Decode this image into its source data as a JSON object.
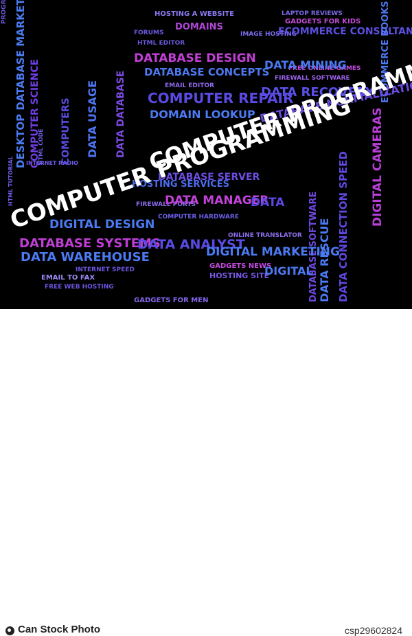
{
  "word_cloud": {
    "headline_1": "COMPUTER PROGRAMMING",
    "headline_2": "COMPUTER PROGRAMMING",
    "words": {
      "database_design": "DATABASE DESIGN",
      "database_concepts": "DATABASE CONCEPTS",
      "data_usage": "DATA USAGE",
      "data_mining": "DATA MINING",
      "data_recovery": "DATA RECOVERY",
      "computer_repair": "COMPUTER REPAIR",
      "domain_lookup": "DOMAIN LOOKUP",
      "database_normalization": "DATABASE NORMALIZATION",
      "database_server": "DATABASE SERVER",
      "data_manager": "DATA MANAGER",
      "data": "DATA",
      "digital_design": "DIGITAL DESIGN",
      "database_systems": "DATABASE SYSTEMS",
      "data_warehouse": "DATA WAREHOUSE",
      "data_analyst": "DATA ANALYST",
      "digital_marketing": "DIGITAL MARKETING",
      "data_database": "DATA DATABASE",
      "digital": "DIGITAL",
      "data_rescue": "DATA RESCUE",
      "data_connection_speed": "DATA CONNECTION SPEED",
      "digital_cameras": "DIGITAL CAMERAS",
      "database_software": "DATABASE SOFTWARE",
      "hosting_a_website": "HOSTING A WEBSITE",
      "domains": "DOMAINS",
      "ecommerce_consultant": "ECOMMERCE CONSULTANT",
      "ecommerce_books": "ECOMMERCE BOOKS",
      "computer_science": "COMPUTER SCIENCE",
      "desktop_database_marketing": "DESKTOP DATABASE MARKETING",
      "hosting_services": "HOSTING SERVICES",
      "firewall_ports": "FIREWALL PORTS",
      "email_to_fax": "EMAIL TO FAX",
      "internet_speed": "INTERNET SPEED",
      "gadgets_for_men": "GADGETS FOR MEN",
      "online_games": "FREE ONLINE GAMES",
      "firewall_software": "FIREWALL SOFTWARE",
      "email_editor": "EMAIL EDITOR",
      "laptop_reviews": "LAPTOP REVIEWS",
      "programming": "PROGRAMMING",
      "forums": "FORUMS",
      "html_editor": "HTML EDITOR",
      "image_hosting": "IMAGE HOSTING",
      "gadgets_for_kids": "GADGETS FOR KIDS",
      "computer_s": "COMPUTERS",
      "gadgets_news": "GADGETS NEWS",
      "online_translator": "ONLINE TRANSLATOR",
      "hosting_site": "HOSTING SITE",
      "computer_hardware": "COMPUTER HARDWARE",
      "internet_radio": "INTERNET RADIO",
      "html_code": "HTML CODE",
      "html_tutorial": "HTML TUTORIAL",
      "web_hosting": "FREE WEB HOSTING"
    }
  },
  "footer": {
    "brand": "Can Stock Photo",
    "id": "csp29602824"
  }
}
